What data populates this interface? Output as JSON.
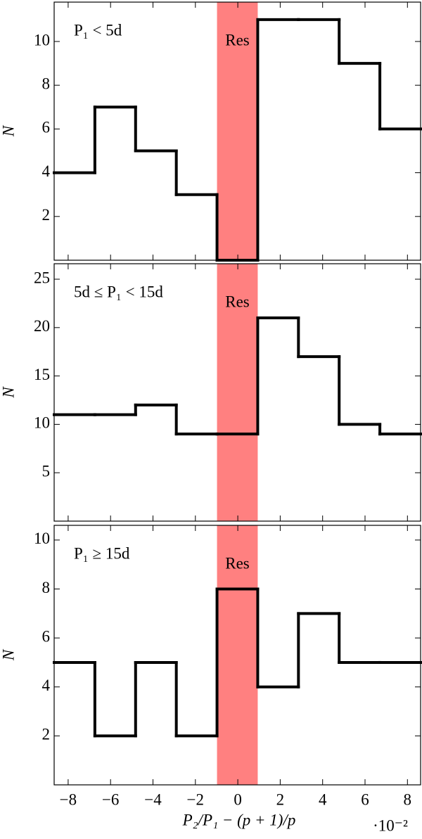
{
  "chart_data": [
    {
      "type": "histogram",
      "label": "P₁ < 5d",
      "ylabel": "N",
      "bins": [
        -8.66,
        -6.74,
        -4.82,
        -2.9,
        -0.98,
        0.94,
        2.86,
        4.78,
        6.7,
        8.62
      ],
      "values": [
        4,
        7,
        5,
        3,
        0,
        11,
        11,
        9,
        6
      ],
      "color": "#000000",
      "xlim": [
        -8.66,
        8.62
      ],
      "ylim": [
        0,
        11.8
      ],
      "yticks": [
        2,
        4,
        6,
        8,
        10
      ],
      "xticks": [
        -8,
        -6,
        -4,
        -2,
        0,
        2,
        4,
        6,
        8
      ],
      "shade": {
        "x0": -0.98,
        "x1": 0.94,
        "label": "Res",
        "color": "#ff8080"
      }
    },
    {
      "type": "histogram",
      "label": "5d ≤ P₁ < 15d",
      "ylabel": "N",
      "bins": [
        -8.66,
        -6.74,
        -4.82,
        -2.9,
        -0.98,
        0.94,
        2.86,
        4.78,
        6.7,
        8.62
      ],
      "values": [
        11,
        11,
        12,
        9,
        9,
        21,
        17,
        10,
        9
      ],
      "color": "#000000",
      "xlim": [
        -8.66,
        8.62
      ],
      "ylim": [
        0,
        26.6
      ],
      "yticks": [
        5,
        10,
        15,
        20,
        25
      ],
      "xticks": [
        -8,
        -6,
        -4,
        -2,
        0,
        2,
        4,
        6,
        8
      ],
      "shade": {
        "x0": -0.98,
        "x1": 0.94,
        "label": "Res",
        "color": "#ff8080"
      }
    },
    {
      "type": "histogram",
      "label": "P₁ ≥ 15d",
      "ylabel": "N",
      "xlabel": "P₂/P₁ − (p + 1)/p",
      "xmultiplier": "·10⁻²",
      "bins": [
        -8.66,
        -6.74,
        -4.82,
        -2.9,
        -0.98,
        0.94,
        2.86,
        4.78,
        6.7,
        8.62
      ],
      "values": [
        5,
        2,
        5,
        2,
        8,
        4,
        7,
        5,
        5
      ],
      "color": "#000000",
      "xlim": [
        -8.66,
        8.62
      ],
      "ylim": [
        0,
        10.6
      ],
      "yticks": [
        2,
        4,
        6,
        8,
        10
      ],
      "xticks": [
        {
          "value": -8,
          "label": "−8"
        },
        {
          "value": -6,
          "label": "−6"
        },
        {
          "value": -4,
          "label": "−4"
        },
        {
          "value": -2,
          "label": "−2"
        },
        0,
        2,
        4,
        6,
        8
      ],
      "shade": {
        "x0": -0.98,
        "x1": 0.94,
        "label": "Res",
        "color": "#ff8080"
      }
    }
  ]
}
